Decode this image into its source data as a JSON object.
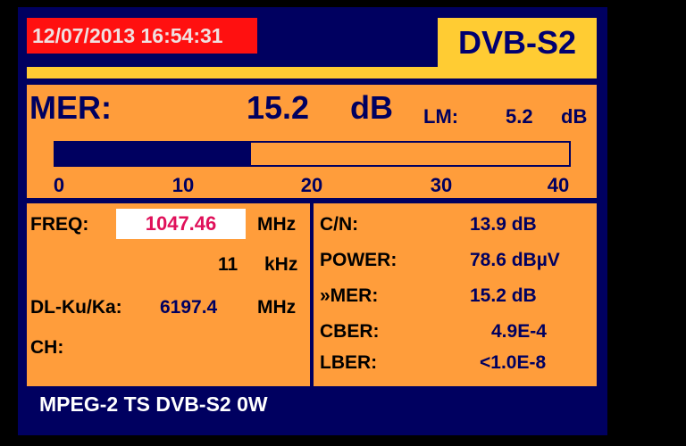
{
  "header": {
    "datetime": "12/07/2013 16:54:31",
    "mode": "DVB-S2"
  },
  "mer": {
    "label": "MER:",
    "value": "15.2",
    "unit": "dB",
    "lm_label": "LM:",
    "lm_value": "5.2",
    "lm_unit": "dB",
    "bar_value": 15.2,
    "bar_max": 40,
    "scale": [
      "0",
      "10",
      "20",
      "30",
      "40"
    ]
  },
  "left": {
    "freq_label": "FREQ:",
    "freq_value": "1047.46",
    "freq_unit": "MHz",
    "offset_value": "11",
    "offset_unit": "kHz",
    "dl_label": "DL-Ku/Ka:",
    "dl_value": "6197.4",
    "dl_unit": "MHz",
    "ch_label": "CH:"
  },
  "right": [
    {
      "label": "C/N:",
      "value": "13.9 dB"
    },
    {
      "label": "POWER:",
      "value": "78.6 dBµV"
    },
    {
      "label": "»MER:",
      "value": "15.2 dB"
    },
    {
      "label": "CBER:",
      "value": "4.9E-4"
    },
    {
      "label": "LBER:",
      "value": "<1.0E-8"
    }
  ],
  "footer": "MPEG-2 TS DVB-S2 0W",
  "colors": {
    "panel": "#ff9d3b",
    "frame": "#000060",
    "date_bg": "#ff1010",
    "mode_bg": "#ffcc33",
    "freq": "#e0105a"
  }
}
